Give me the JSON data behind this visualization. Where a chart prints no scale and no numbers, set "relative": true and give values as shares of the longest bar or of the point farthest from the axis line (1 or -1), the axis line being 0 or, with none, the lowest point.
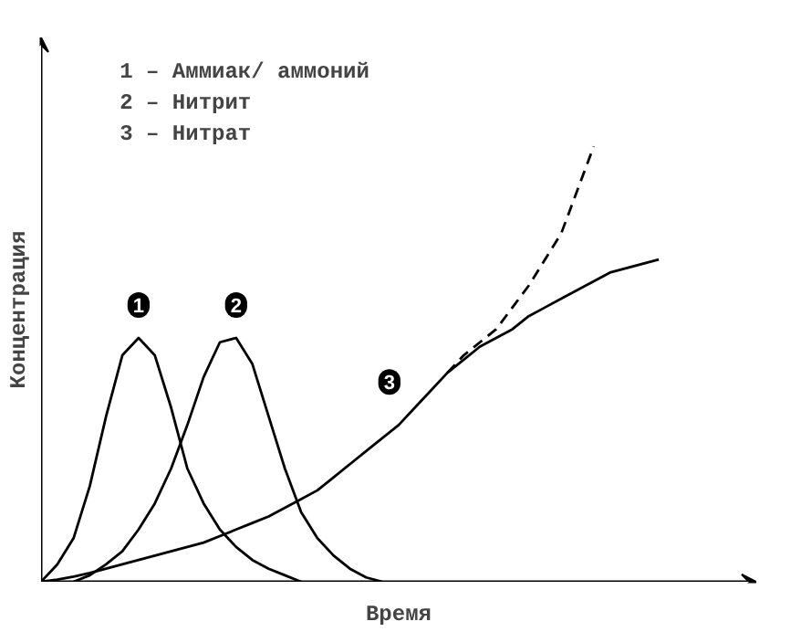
{
  "chart_data": {
    "type": "line",
    "relative": true,
    "xlabel": "Время",
    "ylabel": "Концентрация",
    "line_style": "solid",
    "marker": "none",
    "categories": [
      null,
      null,
      null,
      null,
      null,
      null,
      null,
      null,
      null,
      null,
      null,
      null,
      null,
      null,
      null,
      null,
      null,
      null,
      null,
      null,
      null,
      null,
      null,
      null,
      null,
      null,
      null,
      null,
      null,
      null,
      null,
      null,
      null,
      null,
      null,
      null,
      null,
      null,
      null,
      null,
      null
    ],
    "series": [
      {
        "name": "1",
        "color": "#000000",
        "values": [
          0,
          0.04,
          0.1,
          0.22,
          0.38,
          0.52,
          0.56,
          0.52,
          0.4,
          0.26,
          0.18,
          0.12,
          0.08,
          0.05,
          0.03,
          0.015,
          0,
          null,
          null,
          null,
          null,
          null,
          null,
          null,
          null,
          null,
          null,
          null,
          null,
          null,
          null,
          null,
          null,
          null,
          null,
          null,
          null,
          null,
          null,
          null,
          null
        ]
      },
      {
        "name": "2",
        "color": "#000000",
        "values": [
          null,
          null,
          0,
          0.015,
          0.04,
          0.07,
          0.12,
          0.18,
          0.26,
          0.36,
          0.47,
          0.55,
          0.56,
          0.5,
          0.38,
          0.26,
          0.16,
          0.1,
          0.06,
          0.03,
          0.01,
          0,
          null,
          null,
          null,
          null,
          null,
          null,
          null,
          null,
          null,
          null,
          null,
          null,
          null,
          null,
          null,
          null,
          null,
          null,
          null
        ]
      },
      {
        "name": "3",
        "color": "#000000",
        "values": [
          0,
          0.005,
          0.012,
          0.02,
          0.03,
          0.04,
          0.05,
          0.06,
          0.07,
          0.08,
          0.09,
          0.105,
          0.12,
          0.135,
          0.15,
          0.17,
          0.19,
          0.21,
          0.24,
          0.27,
          0.3,
          0.33,
          0.36,
          0.4,
          0.44,
          0.48,
          0.51,
          0.54,
          0.56,
          0.58,
          0.61,
          0.63,
          0.65,
          0.67,
          0.69,
          0.71,
          0.72,
          0.73,
          0.74,
          null,
          null
        ]
      },
      {
        "color": "#000000",
        "line_style": "dashed",
        "values": [
          null,
          null,
          null,
          null,
          null,
          null,
          null,
          null,
          null,
          null,
          null,
          null,
          null,
          null,
          null,
          null,
          null,
          null,
          null,
          null,
          null,
          null,
          null,
          null,
          null,
          0.48,
          0.52,
          0.55,
          0.58,
          0.63,
          0.68,
          0.74,
          0.8,
          0.9,
          1,
          null,
          null,
          null,
          null,
          null,
          null
        ]
      }
    ],
    "annotations": [
      "1 – Аммиак/ аммоний",
      "2 – Нитрит",
      "3 – Нитрат"
    ]
  }
}
